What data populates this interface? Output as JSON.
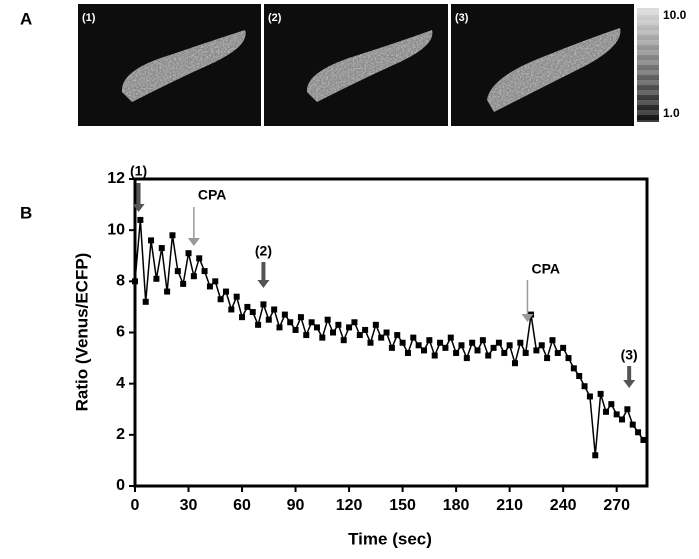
{
  "panel_a": {
    "label": "A",
    "frames": [
      "(1)",
      "(2)",
      "(3)"
    ],
    "colorbar_lim": [
      1,
      10
    ],
    "colorbar_ticks": [
      {
        "value": 10,
        "label": "10.0"
      },
      {
        "value": 1,
        "label": "1.0"
      }
    ]
  },
  "chart_data": {
    "type": "line",
    "panel_label": "B",
    "xlabel": "Time (sec)",
    "ylabel": "Ratio (Venus/ECFP)",
    "x": [
      0,
      3,
      6,
      9,
      12,
      15,
      18,
      21,
      24,
      27,
      30,
      33,
      36,
      39,
      42,
      45,
      48,
      51,
      54,
      57,
      60,
      63,
      66,
      69,
      72,
      75,
      78,
      81,
      84,
      87,
      90,
      93,
      96,
      99,
      102,
      105,
      108,
      111,
      114,
      117,
      120,
      123,
      126,
      129,
      132,
      135,
      138,
      141,
      144,
      147,
      150,
      153,
      156,
      159,
      162,
      165,
      168,
      171,
      174,
      177,
      180,
      183,
      186,
      189,
      192,
      195,
      198,
      201,
      204,
      207,
      210,
      213,
      216,
      219,
      222,
      225,
      228,
      231,
      234,
      237,
      240,
      243,
      246,
      249,
      252,
      255,
      258,
      261,
      264,
      267,
      270,
      273,
      276,
      279,
      282,
      285
    ],
    "series": [
      {
        "color": "#000000",
        "values": [
          8.0,
          10.4,
          7.2,
          9.6,
          8.1,
          9.3,
          7.6,
          9.8,
          8.4,
          7.9,
          9.1,
          8.2,
          8.9,
          8.4,
          7.8,
          8.0,
          7.3,
          7.6,
          6.9,
          7.4,
          6.6,
          7.0,
          6.8,
          6.3,
          7.1,
          6.5,
          6.9,
          6.2,
          6.7,
          6.4,
          6.1,
          6.6,
          5.9,
          6.4,
          6.2,
          5.8,
          6.5,
          6.0,
          6.3,
          5.7,
          6.2,
          6.4,
          5.9,
          6.1,
          5.6,
          6.3,
          5.8,
          6.0,
          5.4,
          5.9,
          5.6,
          5.2,
          5.8,
          5.5,
          5.3,
          5.7,
          5.1,
          5.6,
          5.4,
          5.8,
          5.2,
          5.5,
          5.0,
          5.6,
          5.3,
          5.7,
          5.1,
          5.4,
          5.6,
          5.2,
          5.5,
          4.8,
          5.6,
          5.2,
          6.7,
          5.3,
          5.5,
          5.0,
          5.7,
          5.2,
          5.4,
          5.0,
          4.6,
          4.3,
          3.9,
          3.5,
          1.2,
          3.6,
          2.9,
          3.2,
          2.8,
          2.6,
          3.0,
          2.4,
          2.1,
          1.8
        ]
      }
    ],
    "annotations": [
      {
        "text": "(1)",
        "x": 2
      },
      {
        "text": "CPA",
        "x": 33
      },
      {
        "text": "(2)",
        "x": 72
      },
      {
        "text": "CPA",
        "x": 220
      },
      {
        "text": "(3)",
        "x": 277
      }
    ],
    "xlim": [
      0,
      287
    ],
    "ylim": [
      0,
      12
    ],
    "xticks": [
      0,
      30,
      60,
      90,
      120,
      150,
      180,
      210,
      240,
      270
    ],
    "yticks": [
      0,
      2,
      4,
      6,
      8,
      10,
      12
    ]
  }
}
